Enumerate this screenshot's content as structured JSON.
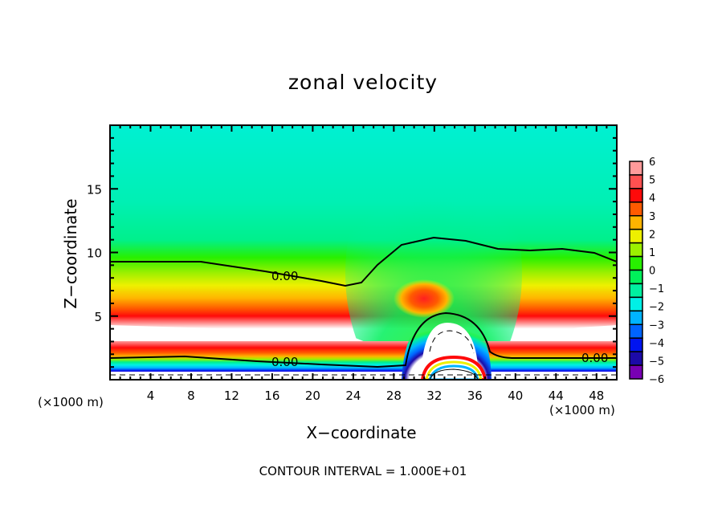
{
  "chart_data": {
    "type": "heatmap",
    "subtype": "filled-contour",
    "title": "zonal velocity",
    "xlabel": "X−coordinate",
    "ylabel": "Z−coordinate",
    "x_unit_left": "(×1000 m)",
    "x_unit_right": "(×1000 m)",
    "xlim": [
      0,
      50
    ],
    "ylim": [
      0,
      20
    ],
    "x_ticks": [
      4,
      8,
      12,
      16,
      20,
      24,
      28,
      32,
      36,
      40,
      44,
      48
    ],
    "x_tick_labels": [
      "4",
      "8",
      "12",
      "16",
      "20",
      "24",
      "28",
      "32",
      "36",
      "40",
      "44",
      "48"
    ],
    "y_ticks": [
      5,
      10,
      15
    ],
    "y_tick_labels": [
      "5",
      "10",
      "15"
    ],
    "footer": "CONTOUR INTERVAL = 1.000E+01",
    "colorbar": {
      "levels": [
        6,
        5,
        4,
        3,
        2,
        1,
        0,
        -1,
        -2,
        -3,
        -4,
        -5,
        -6
      ],
      "labels": [
        "6",
        "5",
        "4",
        "3",
        "2",
        "1",
        "0",
        "−1",
        "−2",
        "−3",
        "−4",
        "−5",
        "−6"
      ],
      "colors": [
        "#ff9a9a",
        "#ff5050",
        "#ff0a0a",
        "#ff5a00",
        "#ffb400",
        "#eef000",
        "#9cf000",
        "#28f000",
        "#00f05a",
        "#00f0a0",
        "#00f0e6",
        "#00b4ff",
        "#0064ff",
        "#0014f0",
        "#1c0aa8",
        "#7800b4"
      ]
    },
    "contour_lines": [
      {
        "level": 0.0,
        "label": "0.00",
        "style": "solid",
        "description": "upper zero-velocity line near z≈9 km, rising to z≈11 km over x≈32 km"
      },
      {
        "level": 0.0,
        "label": "0.00",
        "style": "solid",
        "description": "lower zero-velocity line near z≈1.5 km, arching over ridge near x≈33 km to z≈5 km"
      },
      {
        "level": -10.0,
        "style": "dashed",
        "description": "negative contours near surface and inside arch"
      }
    ],
    "features": [
      {
        "name": "low-level westerly jet",
        "approx_x": [
          0,
          26
        ],
        "approx_z": [
          2.5,
          4.5
        ],
        "value": "> 6"
      },
      {
        "name": "low-level westerly jet (east)",
        "approx_x": [
          42,
          50
        ],
        "approx_z": [
          2.5,
          4.5
        ],
        "value": "> 6"
      },
      {
        "name": "easterly region aloft",
        "approx_x": [
          4,
          20
        ],
        "approx_z": [
          17,
          20
        ],
        "value": "≈ -2"
      },
      {
        "name": "reversed flow over obstacle",
        "approx_x": [
          30,
          37
        ],
        "approx_z": [
          0,
          5
        ],
        "value": "< -6"
      }
    ]
  }
}
